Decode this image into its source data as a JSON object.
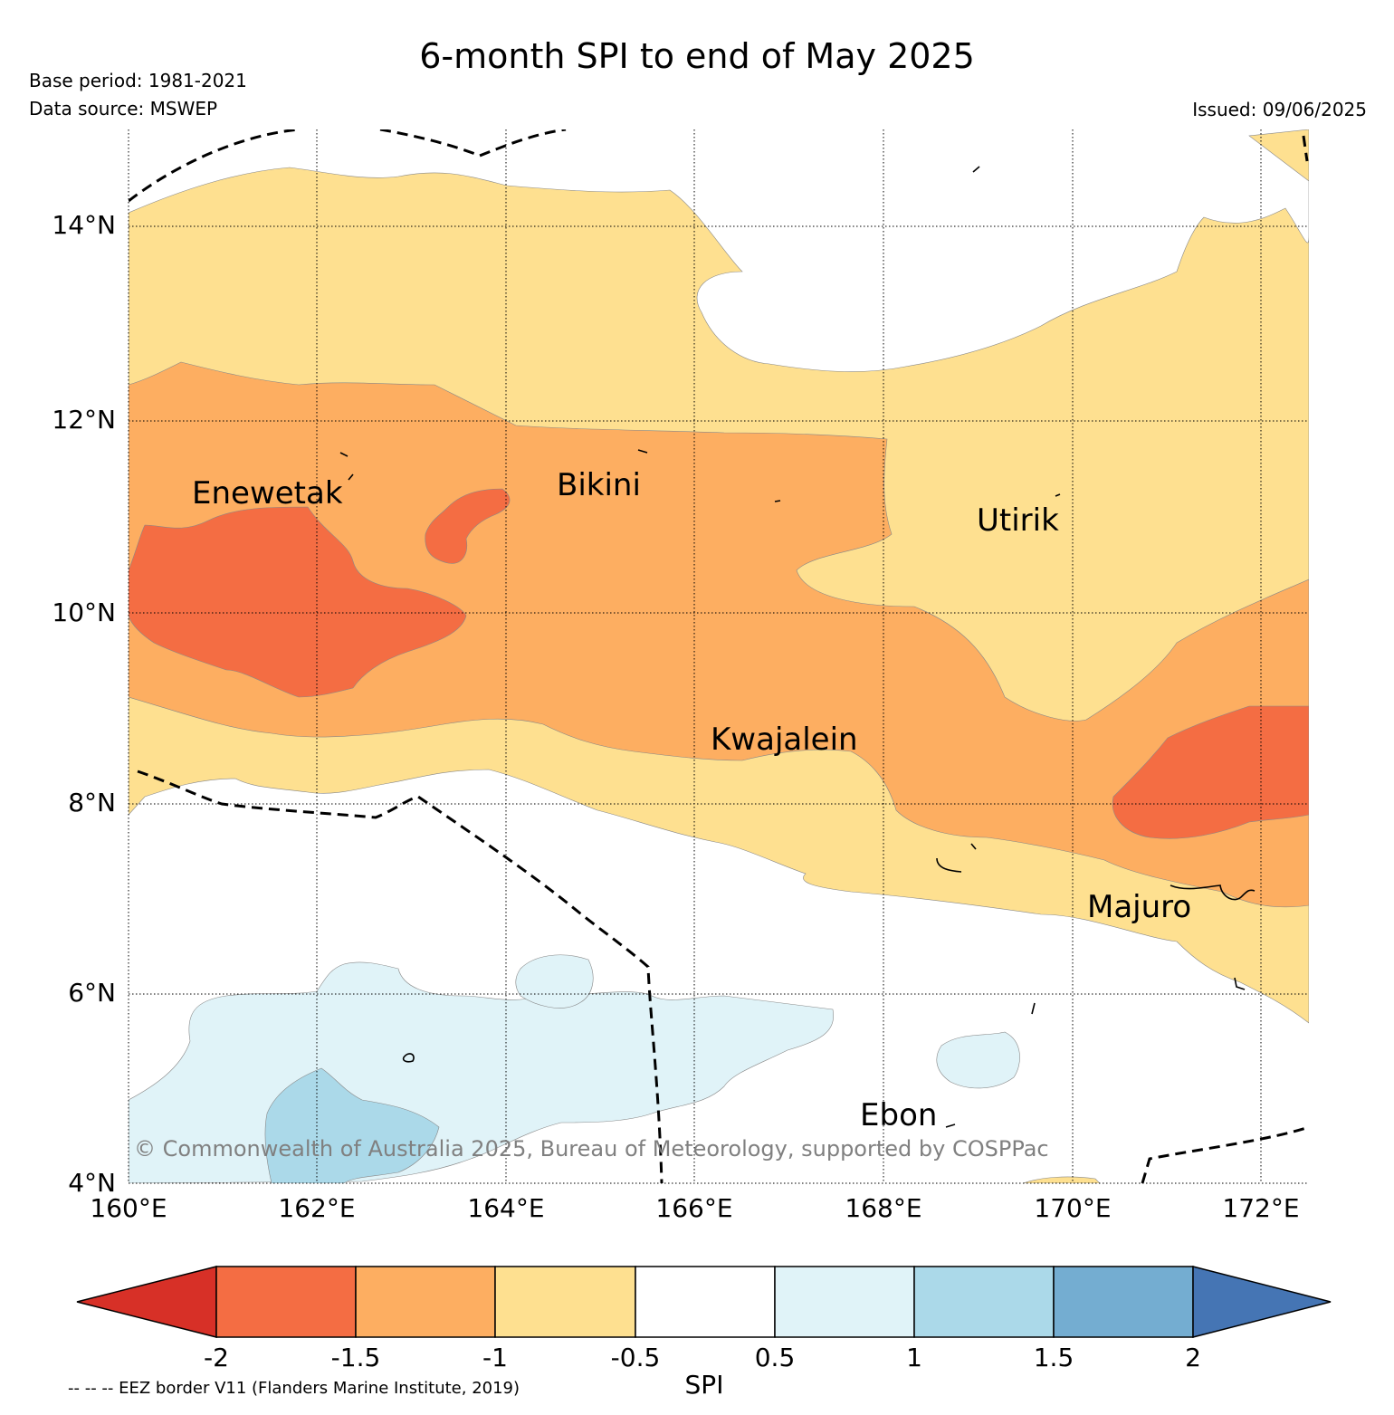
{
  "title": "6-month SPI to end of May 2025",
  "base_period": "Base period: 1981-2021",
  "data_source": "Data source: MSWEP",
  "issued": "Issued: 09/06/2025",
  "copyright": "© Commonwealth of Australia 2025, Bureau of Meteorology, supported by COSPPac",
  "eez_note": "-- -- -- EEZ border V11 (Flanders Marine Institute, 2019)",
  "map": {
    "lat_labels": [
      "14°N",
      "12°N",
      "10°N",
      "8°N",
      "6°N",
      "4°N"
    ],
    "lon_labels": [
      "160°E",
      "162°E",
      "164°E",
      "166°E",
      "168°E",
      "170°E",
      "172°E"
    ],
    "places": [
      "Enewetak",
      "Bikini",
      "Utirik",
      "Kwajalein",
      "Majuro",
      "Ebon"
    ]
  },
  "colorbar": {
    "label": "SPI",
    "ticks": [
      "-2",
      "-1.5",
      "-1",
      "-0.5",
      "0.5",
      "1",
      "1.5",
      "2"
    ],
    "colors": {
      "lt_-2": "#d73027",
      "-2_-1.5": "#f46d43",
      "-1.5_-1": "#fdae61",
      "-1_-0.5": "#fee090",
      "-0.5_0.5": "#ffffff",
      "0.5_1": "#e0f3f8",
      "1_1.5": "#abd9e9",
      "1.5_2": "#74add1",
      "gt_2": "#4575b4"
    }
  }
}
